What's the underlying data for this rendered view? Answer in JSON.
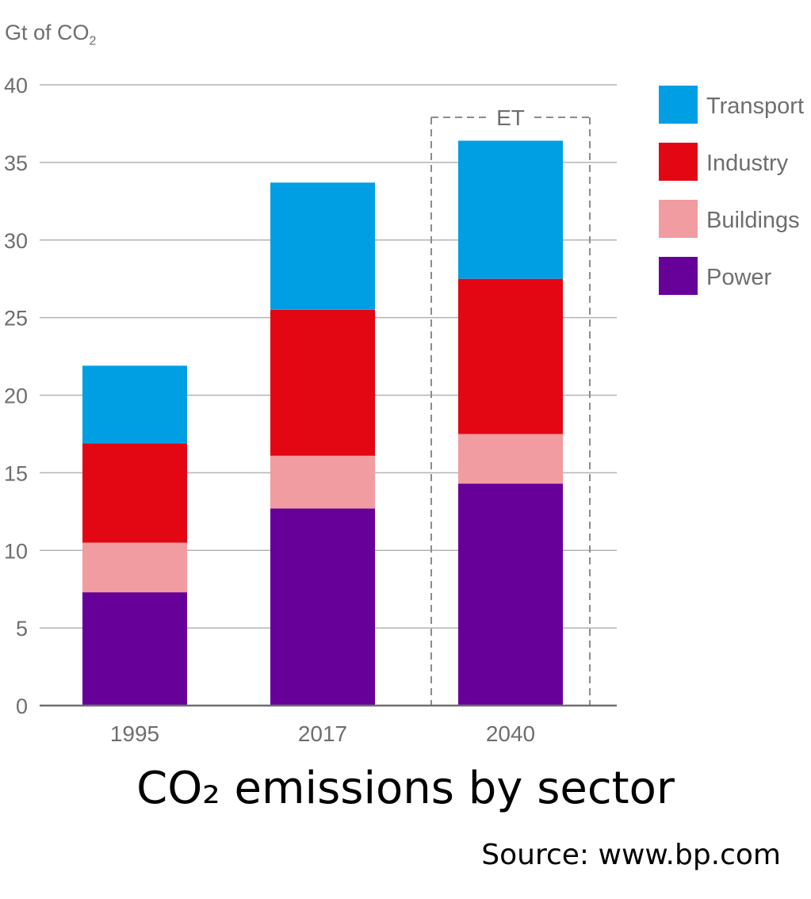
{
  "y_axis_label": "Gt of CO",
  "y_axis_label_sub": "2",
  "title": "CO₂ emissions by sector",
  "source": "Source: www.bp.com",
  "chart_data": {
    "type": "bar",
    "stacked": true,
    "categories": [
      "1995",
      "2017",
      "2040"
    ],
    "series": [
      {
        "name": "Power",
        "values": [
          7.3,
          12.7,
          14.3
        ],
        "color": "#660099"
      },
      {
        "name": "Buildings",
        "values": [
          3.2,
          3.4,
          3.2
        ],
        "color": "#f19ca0"
      },
      {
        "name": "Industry",
        "values": [
          6.4,
          9.4,
          10.0
        ],
        "color": "#e30613"
      },
      {
        "name": "Transport",
        "values": [
          5.0,
          8.2,
          8.9
        ],
        "color": "#009fe3"
      }
    ],
    "ylim": [
      0,
      40
    ],
    "yticks": [
      0,
      5,
      10,
      15,
      20,
      25,
      30,
      35,
      40
    ],
    "grid": true,
    "legend_position": "right",
    "legend_order": [
      "Transport",
      "Industry",
      "Buildings",
      "Power"
    ],
    "annotation": {
      "label": "ET",
      "category": "2040",
      "style": "dashed box"
    }
  }
}
